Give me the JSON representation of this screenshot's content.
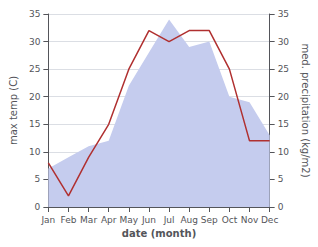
{
  "chart_data": {
    "type": "line",
    "xlabel": "date (month)",
    "ylabel": "max temp (C)",
    "y2label": "med. precipitation (kg/m2)",
    "categories": [
      "Jan",
      "Feb",
      "Mar",
      "Apr",
      "May",
      "Jun",
      "Jul",
      "Aug",
      "Sep",
      "Oct",
      "Nov",
      "Dec"
    ],
    "series": [
      {
        "type": "area",
        "axis": "y2",
        "color": "#c5ccee",
        "values": [
          7,
          9,
          11,
          12,
          22,
          28,
          34,
          29,
          30,
          20,
          19,
          13
        ]
      },
      {
        "type": "line",
        "color": "#b03030",
        "values": [
          8,
          2,
          9,
          15,
          25,
          32,
          30,
          32,
          32,
          25,
          12,
          12
        ]
      }
    ],
    "ylim": [
      0,
      35
    ],
    "yticks": [
      0,
      5,
      10,
      15,
      20,
      25,
      30,
      35
    ],
    "y2lim": [
      0,
      35
    ],
    "y2ticks": [
      0,
      5,
      10,
      15,
      20,
      25,
      30,
      35
    ],
    "grid": true
  }
}
